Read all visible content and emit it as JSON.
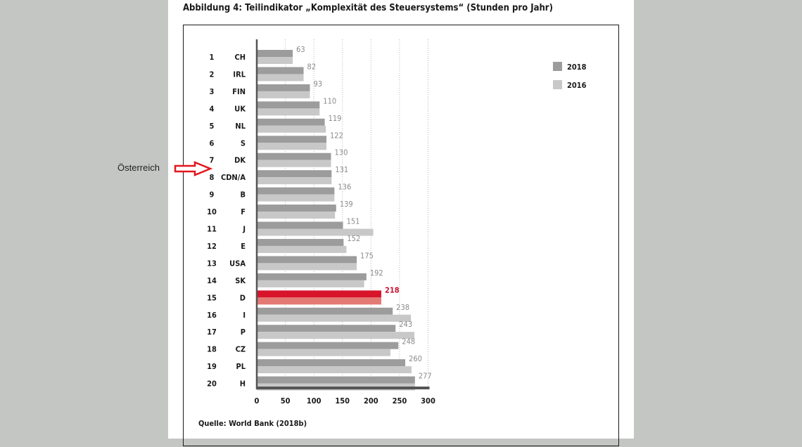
{
  "figure": {
    "title": "Abbildung 4:   Teilindikator „Komplexität des Steuersystems“ (Stunden pro Jahr)",
    "source": "Quelle: World Bank (2018b)"
  },
  "annotation": {
    "label": "Österreich",
    "arrow_color": "#e3161e"
  },
  "chart_data": {
    "type": "bar",
    "orientation": "horizontal",
    "ranks": [
      "1",
      "2",
      "3",
      "4",
      "5",
      "6",
      "7",
      "8",
      "9",
      "10",
      "11",
      "12",
      "13",
      "14",
      "15",
      "16",
      "17",
      "18",
      "19",
      "20"
    ],
    "categories": [
      "CH",
      "IRL",
      "FIN",
      "UK",
      "NL",
      "S",
      "DK",
      "CDN/A",
      "B",
      "F",
      "J",
      "E",
      "USA",
      "SK",
      "D",
      "I",
      "P",
      "CZ",
      "PL",
      "H"
    ],
    "series": [
      {
        "name": "2018",
        "color": "#9c9c9c",
        "values": [
          63,
          82,
          93,
          110,
          119,
          122,
          130,
          131,
          136,
          139,
          151,
          152,
          175,
          192,
          218,
          238,
          243,
          248,
          260,
          277
        ],
        "data_labels": [
          "63",
          "82",
          "93",
          "110",
          "119",
          "122",
          "130",
          "131",
          "136",
          "139",
          "151",
          "152",
          "175",
          "192",
          "218",
          "238",
          "243",
          "248",
          "260",
          "277"
        ]
      },
      {
        "name": "2016",
        "color": "#c8c8c8",
        "values": [
          63,
          82,
          93,
          110,
          121,
          122,
          130,
          131,
          136,
          137,
          204,
          157,
          175,
          188,
          218,
          270,
          276,
          234,
          271,
          277
        ]
      }
    ],
    "highlight": {
      "category": "D",
      "color_2018": "#d7142a",
      "color_2016": "#e37a74",
      "label_color": "#c8102e"
    },
    "x_ticks": [
      "0",
      "50",
      "100",
      "150",
      "200",
      "250",
      "300"
    ],
    "x_tick_values": [
      0,
      50,
      100,
      150,
      200,
      250,
      300
    ],
    "xlim": [
      0,
      300
    ],
    "grid": "vertical dotted",
    "legend_position": "top-right"
  }
}
